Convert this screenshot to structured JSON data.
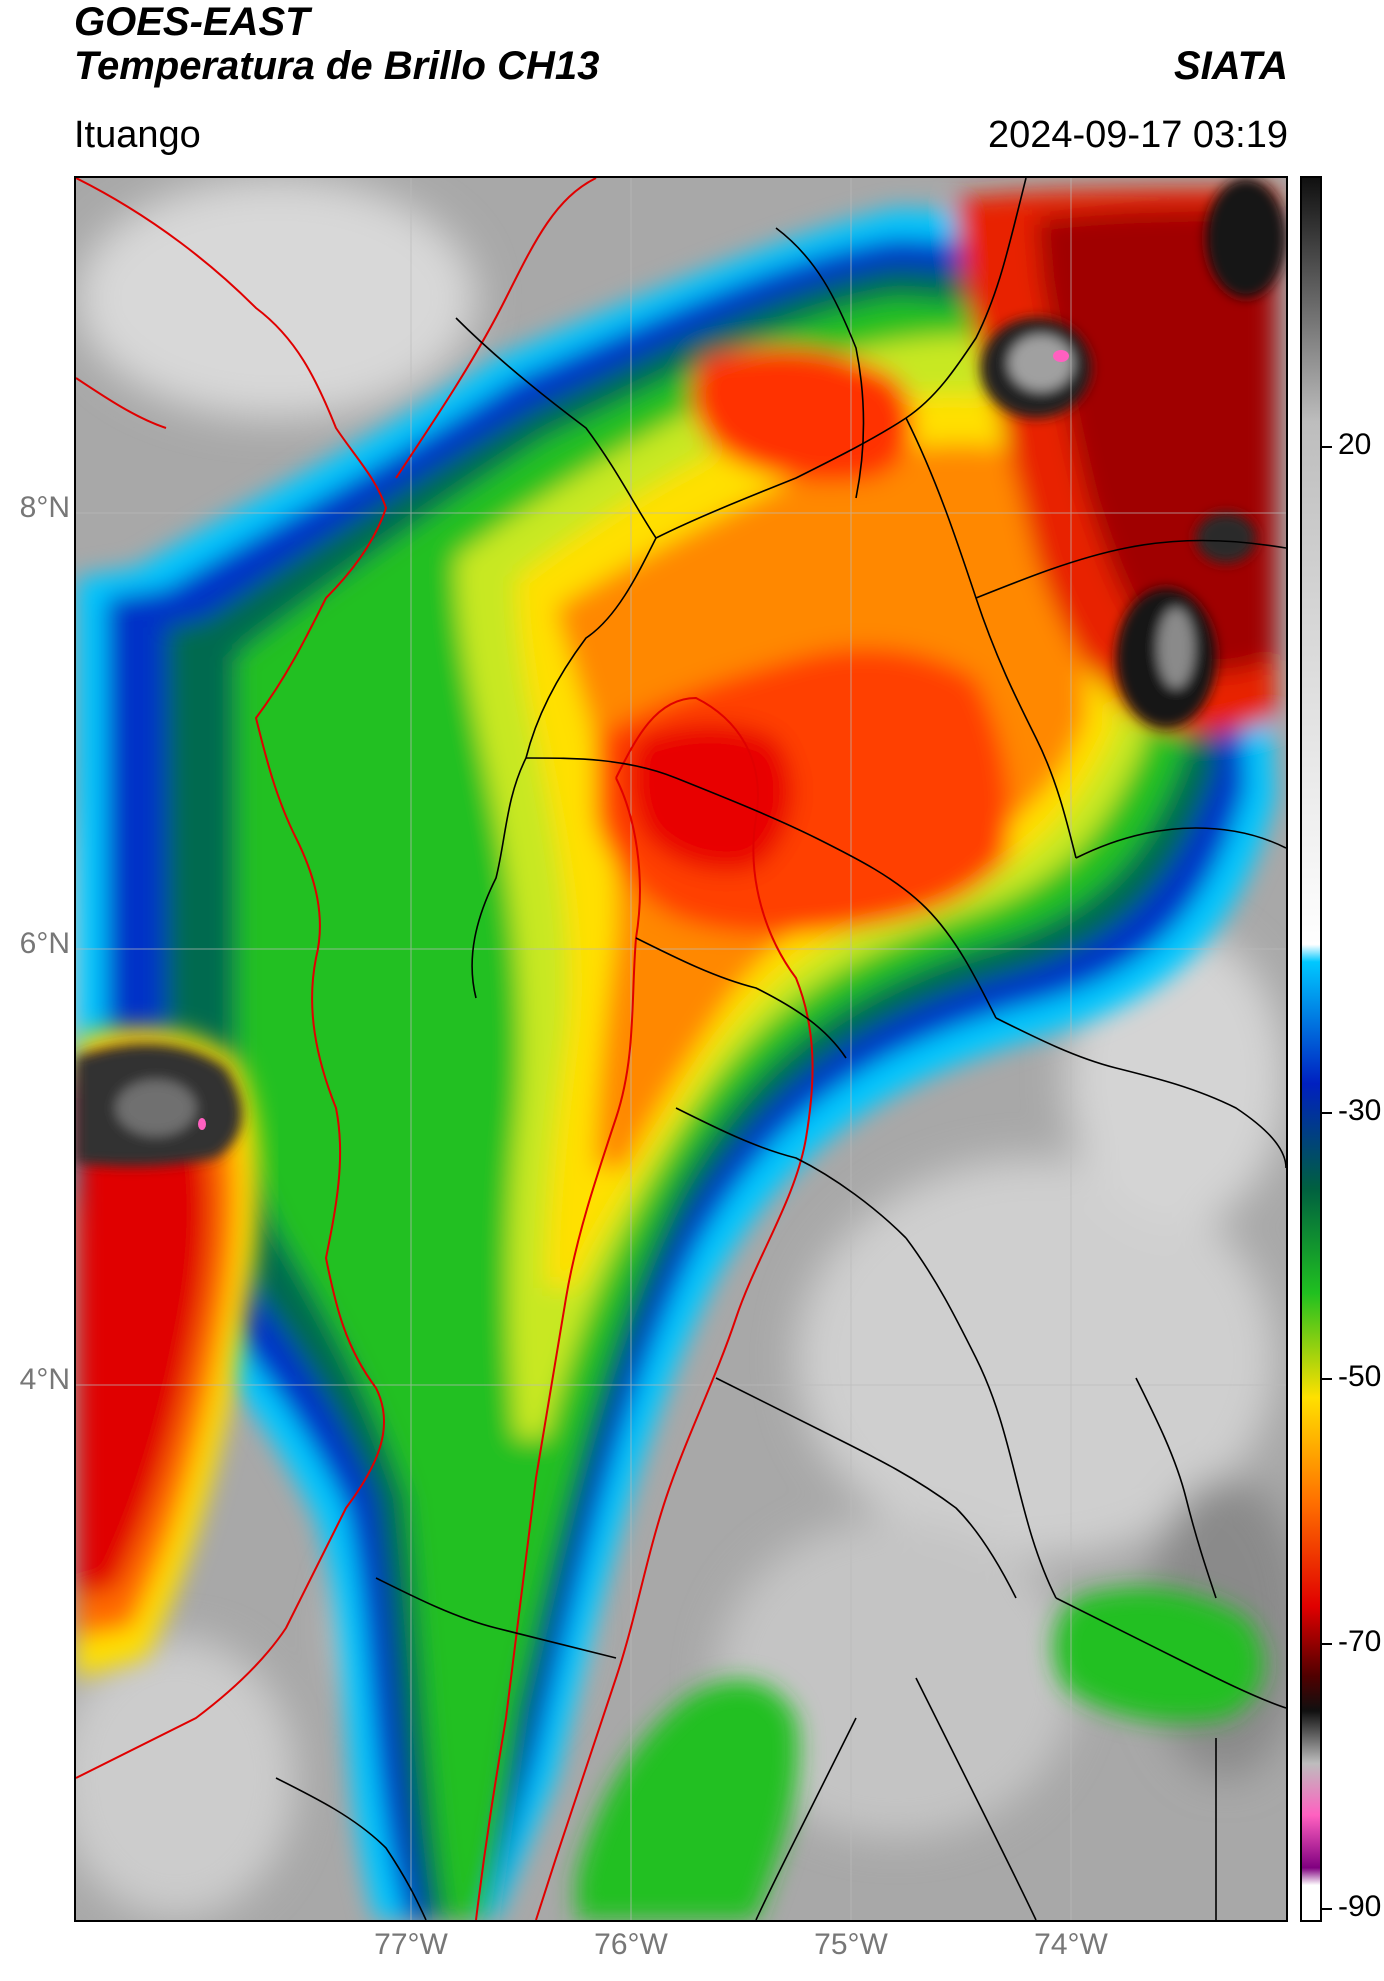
{
  "header": {
    "satellite": "GOES-EAST",
    "product": "Temperatura de Brillo CH13",
    "organization": "SIATA",
    "location": "Ituango",
    "timestamp": "2024-09-17 03:19"
  },
  "axes": {
    "latitude_labels": [
      "8°N",
      "6°N",
      "4°N"
    ],
    "longitude_labels": [
      "77°W",
      "76°W",
      "75°W",
      "74°W"
    ]
  },
  "colorbar": {
    "ticks": [
      "20",
      "-30",
      "-50",
      "-70",
      "-90"
    ],
    "range": [
      -90,
      35
    ],
    "colors": {
      "warm_gray": "#bdbdbd",
      "white": "#ffffff",
      "cyan": "#00c8ff",
      "blue": "#0020c0",
      "dark_green": "#006040",
      "green": "#20c020",
      "yellow": "#ffe000",
      "orange": "#ff7000",
      "red": "#e00000",
      "dark_red": "#500000",
      "black": "#101010",
      "pink": "#ff60c0",
      "purple": "#800080"
    }
  },
  "map_colors": {
    "country_border": "#e00000",
    "department_border": "#000000"
  }
}
